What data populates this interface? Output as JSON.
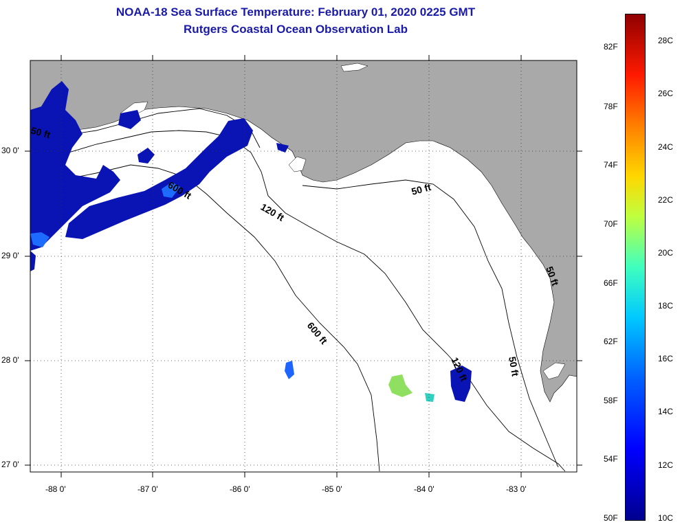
{
  "title": {
    "line1": "NOAA-18 Sea Surface Temperature:  February 01, 2020 0225 GMT",
    "line2": "Rutgers Coastal Ocean Observation Lab"
  },
  "map": {
    "region": "Gulf of Mexico - Florida Big Bend",
    "lon_range": [
      -88.33,
      -82.4
    ],
    "lat_range": [
      26.98,
      30.85
    ],
    "land_color": "#a9a9a9",
    "water_color": "#ffffff",
    "sst_cold_color": "#0a14b4",
    "x_ticks": [
      "-88 0'",
      "-87 0'",
      "-86 0'",
      "-85 0'",
      "-84 0'",
      "-83 0'"
    ],
    "y_ticks": [
      "30 0'",
      "29 0'",
      "28 0'",
      "27 0'"
    ],
    "contours": {
      "c50_west": "50 ft",
      "c600": "600 ft",
      "c120": "120 ft",
      "c50_east": "50 ft",
      "c600_south": "600 ft",
      "c120_south": "120 ft",
      "c50_south": "50 ft",
      "c50_coast": "50 ft"
    }
  },
  "colorbar": {
    "fahrenheit": [
      "82F",
      "78F",
      "74F",
      "70F",
      "66F",
      "62F",
      "58F",
      "54F",
      "50F"
    ],
    "celsius": [
      "28C",
      "26C",
      "24C",
      "22C",
      "20C",
      "18C",
      "16C",
      "14C",
      "12C",
      "10C"
    ],
    "min_c": 10,
    "max_c": 29,
    "colors": [
      "#00008f",
      "#0000ff",
      "#0060ff",
      "#00c8ff",
      "#3fffbf",
      "#bfff3f",
      "#ffd700",
      "#ff7f00",
      "#ff1a00",
      "#8f0000"
    ]
  }
}
